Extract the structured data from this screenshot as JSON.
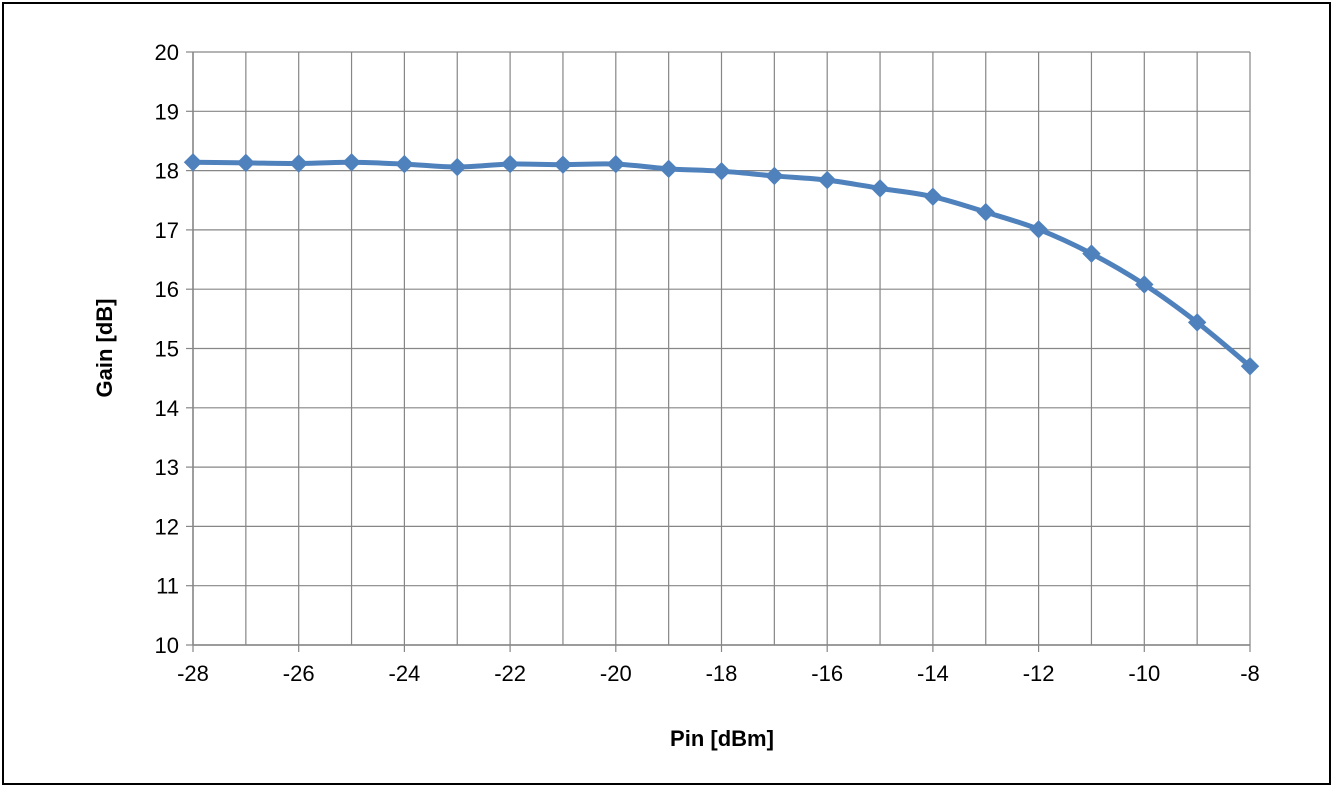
{
  "chart_data": {
    "type": "line",
    "title": "",
    "xlabel": "Pin [dBm]",
    "ylabel": "Gain [dB]",
    "xlim": [
      -28,
      -8
    ],
    "ylim": [
      10,
      20
    ],
    "xticks": [
      -28,
      -26,
      -24,
      -22,
      -20,
      -18,
      -16,
      -14,
      -12,
      -10,
      -8
    ],
    "yticks": [
      10,
      11,
      12,
      13,
      14,
      15,
      16,
      17,
      18,
      19,
      20
    ],
    "grid": true,
    "legend": "none",
    "series": [
      {
        "marker": "diamond",
        "color": "#4F81BD",
        "x": [
          -28,
          -27,
          -26,
          -25,
          -24,
          -23,
          -22,
          -21,
          -20,
          -19,
          -18,
          -17,
          -16,
          -15,
          -14,
          -13,
          -12,
          -11,
          -10,
          -9,
          -8
        ],
        "y": [
          18.14,
          18.13,
          18.12,
          18.14,
          18.11,
          18.06,
          18.11,
          18.1,
          18.11,
          18.03,
          17.99,
          17.91,
          17.84,
          17.7,
          17.56,
          17.3,
          17.01,
          16.6,
          16.08,
          15.44,
          14.7
        ]
      }
    ]
  },
  "colors": {
    "series": "#4F81BD",
    "grid": "#868686",
    "background": "#FFFFFF"
  }
}
